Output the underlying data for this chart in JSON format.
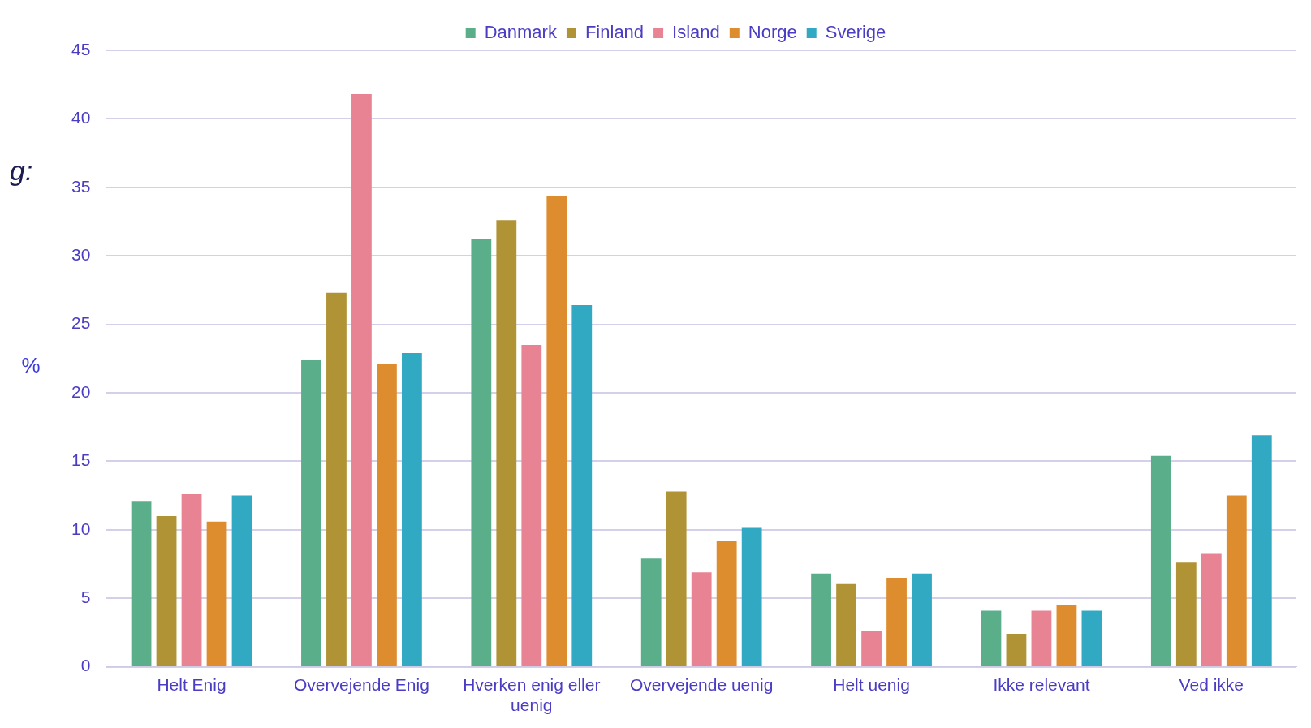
{
  "chart_data": {
    "type": "bar",
    "ylabel": "%",
    "annotations": [
      "g:"
    ],
    "categories": [
      "Helt Enig",
      "Overvejende Enig",
      "Hverken enig eller uenig",
      "Overvejende uenig",
      "Helt uenig",
      "Ikke relevant",
      "Ved ikke"
    ],
    "series": [
      {
        "name": "Danmark",
        "color": "#5aaf8a",
        "values": [
          12.1,
          22.4,
          31.2,
          7.9,
          6.8,
          4.1,
          15.4
        ]
      },
      {
        "name": "Finland",
        "color": "#b09335",
        "values": [
          11.0,
          27.3,
          32.6,
          12.8,
          6.1,
          2.4,
          7.6
        ]
      },
      {
        "name": "Island",
        "color": "#e88393",
        "values": [
          12.6,
          41.8,
          23.5,
          6.9,
          2.6,
          4.1,
          8.3
        ]
      },
      {
        "name": "Norge",
        "color": "#dd8c2e",
        "values": [
          10.6,
          22.1,
          34.4,
          9.2,
          6.5,
          4.5,
          12.5
        ]
      },
      {
        "name": "Sverige",
        "color": "#31a9c3",
        "values": [
          12.5,
          22.9,
          26.4,
          10.2,
          6.8,
          4.1,
          16.9
        ]
      }
    ],
    "ylim": [
      0,
      45
    ],
    "yticks": [
      0,
      5,
      10,
      15,
      20,
      25,
      30,
      35,
      40,
      45
    ],
    "grid": "y",
    "legend": "top"
  }
}
